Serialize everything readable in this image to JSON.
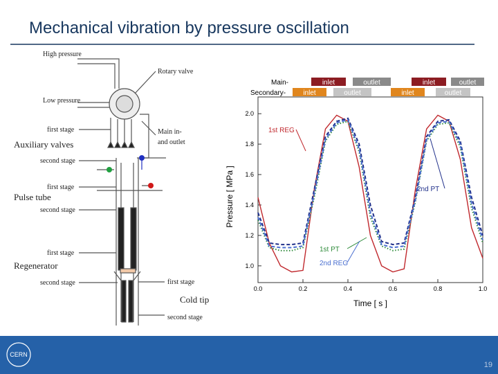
{
  "slide": {
    "title": "Mechanical vibration by pressure oscillation",
    "logo": "CERN",
    "page_number": "19"
  },
  "diagram": {
    "labels": [
      "High pressure",
      "Rotary valve",
      "Low pressure",
      "first stage",
      "Main in-",
      "and outlet",
      "Auxiliary valves",
      "second stage",
      "first stage",
      "Pulse tube",
      "second stage",
      "first stage",
      "Regenerator",
      "second stage",
      "first stage",
      "Cold tip",
      "second stage"
    ]
  },
  "chart_data": {
    "type": "line",
    "xlabel": "Time [ s ]",
    "ylabel": "Pressure [ MPa ]",
    "x": [
      0,
      0.05,
      0.1,
      0.15,
      0.2,
      0.25,
      0.3,
      0.35,
      0.4,
      0.45,
      0.5,
      0.55,
      0.6,
      0.65,
      0.7,
      0.75,
      0.8,
      0.85,
      0.9,
      0.95,
      1.0
    ],
    "series": [
      {
        "name": "1st REG",
        "color": "#c0282d",
        "dash": "solid",
        "values": [
          1.45,
          1.15,
          1.0,
          0.96,
          0.97,
          1.5,
          1.9,
          1.99,
          1.95,
          1.65,
          1.2,
          1.0,
          0.96,
          0.98,
          1.5,
          1.9,
          1.99,
          1.95,
          1.7,
          1.25,
          1.05
        ]
      },
      {
        "name": "2nd PT",
        "color": "#1f2f8a",
        "dash": "dashed",
        "values": [
          1.35,
          1.15,
          1.14,
          1.14,
          1.15,
          1.5,
          1.85,
          1.95,
          1.97,
          1.8,
          1.4,
          1.16,
          1.14,
          1.15,
          1.45,
          1.85,
          1.95,
          1.96,
          1.82,
          1.45,
          1.2
        ]
      },
      {
        "name": "1st PT",
        "color": "#2e8b3a",
        "dash": "dotted",
        "values": [
          1.3,
          1.12,
          1.1,
          1.1,
          1.12,
          1.45,
          1.82,
          1.93,
          1.95,
          1.75,
          1.32,
          1.13,
          1.1,
          1.11,
          1.42,
          1.82,
          1.93,
          1.94,
          1.78,
          1.38,
          1.15
        ]
      },
      {
        "name": "2nd REG",
        "color": "#4a6fd0",
        "dash": "dashed",
        "values": [
          1.32,
          1.13,
          1.12,
          1.12,
          1.13,
          1.47,
          1.83,
          1.94,
          1.96,
          1.77,
          1.35,
          1.14,
          1.12,
          1.13,
          1.43,
          1.83,
          1.94,
          1.95,
          1.8,
          1.41,
          1.17
        ]
      }
    ],
    "xlim": [
      0,
      1
    ],
    "ylim": [
      0.89,
      2.11
    ],
    "xticks": [
      {
        "value": 0,
        "label": "0.0"
      },
      0.2,
      0.4,
      0.6,
      0.8,
      {
        "value": 1,
        "label": "1.0"
      }
    ],
    "yticks": [
      {
        "value": 1,
        "label": "1.0"
      },
      1.2,
      1.4,
      1.6,
      1.8,
      {
        "value": 2,
        "label": "2.0"
      }
    ],
    "valve_timing": {
      "main_label": "Main-",
      "secondary_label": "Secondary-",
      "main": [
        "inlet",
        "outlet",
        "inlet",
        "outlet"
      ],
      "secondary": [
        "inlet",
        "outlet",
        "inlet",
        "outlet"
      ],
      "main_colors": [
        "#8c1c22",
        "#8a8a8a",
        "#8c1c22",
        "#8a8a8a"
      ],
      "secondary_colors": [
        "#e0861e",
        "#c4c4c4",
        "#e0861e",
        "#c4c4c4"
      ]
    }
  }
}
